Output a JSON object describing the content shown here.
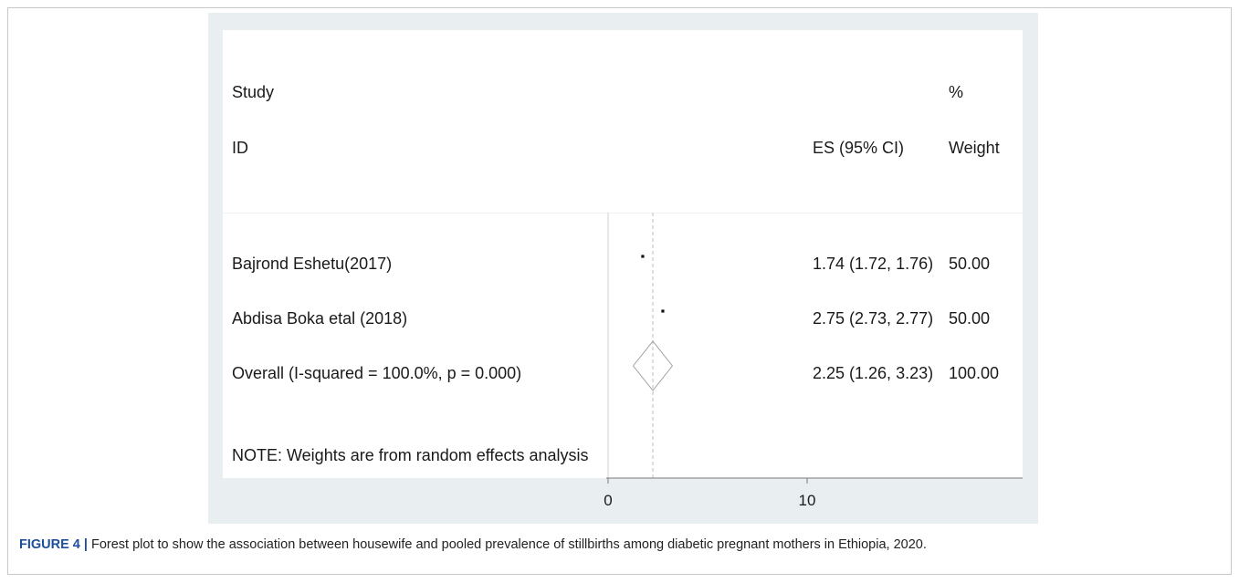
{
  "figure": {
    "label": "FIGURE 4 |",
    "caption": " Forest plot to show the association between housewife and pooled prevalence of stillbirths among diabetic pregnant mothers in Ethiopia, 2020."
  },
  "table_header": {
    "study_line1": "Study",
    "study_line2": "ID",
    "es_label": "ES (95% CI)",
    "weight_line1": "%",
    "weight_line2": "Weight"
  },
  "rows": [
    {
      "study": "Bajrond Eshetu(2017)",
      "es_text": "1.74 (1.72, 1.76)",
      "weight": "50.00"
    },
    {
      "study": "Abdisa Boka etal (2018)",
      "es_text": "2.75 (2.73, 2.77)",
      "weight": "50.00"
    },
    {
      "study": "Overall  (I-squared = 100.0%, p = 0.000)",
      "es_text": "2.25 (1.26, 3.23)",
      "weight": "100.00"
    }
  ],
  "note": "NOTE: Weights are from random effects analysis",
  "chart_data": {
    "type": "forest",
    "xticks": [
      "0",
      "10"
    ],
    "xtick_values": [
      0,
      10
    ],
    "null_line": 0,
    "pooled_line": 2.25,
    "studies": [
      {
        "name": "Bajrond Eshetu(2017)",
        "es": 1.74,
        "lower": 1.72,
        "upper": 1.76,
        "weight": 50.0
      },
      {
        "name": "Abdisa Boka etal (2018)",
        "es": 2.75,
        "lower": 2.73,
        "upper": 2.77,
        "weight": 50.0
      }
    ],
    "overall": {
      "es": 2.25,
      "lower": 1.26,
      "upper": 3.23,
      "weight": 100.0
    }
  }
}
